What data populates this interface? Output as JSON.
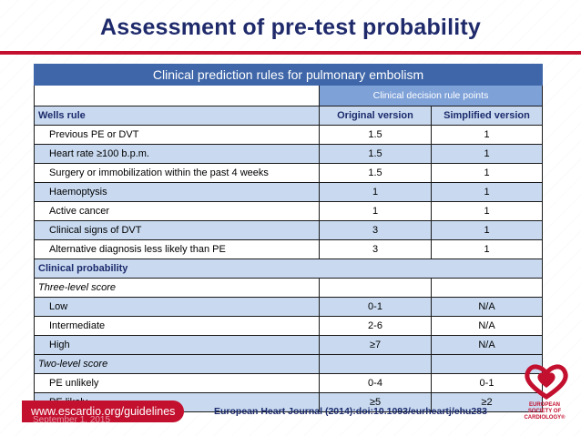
{
  "slide": {
    "title": "Assessment of pre-test probability",
    "table_title": "Clinical prediction rules for pulmonary embolism",
    "header_span": "Clinical decision rule points",
    "col_original": "Original version",
    "col_simplified": "Simplified version",
    "wells_heading": "Wells rule",
    "wells_rows": [
      {
        "label": "Previous PE or DVT",
        "orig": "1.5",
        "simp": "1"
      },
      {
        "label": "Heart rate ≥100 b.p.m.",
        "orig": "1.5",
        "simp": "1"
      },
      {
        "label": "Surgery or immobilization within the past 4 weeks",
        "orig": "1.5",
        "simp": "1"
      },
      {
        "label": "Haemoptysis",
        "orig": "1",
        "simp": "1"
      },
      {
        "label": "Active cancer",
        "orig": "1",
        "simp": "1"
      },
      {
        "label": "Clinical signs of DVT",
        "orig": "3",
        "simp": "1"
      },
      {
        "label": "Alternative diagnosis less likely than PE",
        "orig": "3",
        "simp": "1"
      }
    ],
    "clinical_prob_heading": "Clinical probability",
    "three_level_heading": "Three-level score",
    "three_level_rows": [
      {
        "label": "Low",
        "orig": "0-1",
        "simp": "N/A"
      },
      {
        "label": "Intermediate",
        "orig": "2-6",
        "simp": "N/A"
      },
      {
        "label": "High",
        "orig": "≥7",
        "simp": "N/A"
      }
    ],
    "two_level_heading": "Two-level score",
    "two_level_rows": [
      {
        "label": "PE unlikely",
        "orig": "0-4",
        "simp": "0-1"
      },
      {
        "label": "PE likely",
        "orig": "≥5",
        "simp": "≥2"
      }
    ]
  },
  "footer": {
    "url": "www.escardio.org/guidelines",
    "date": "September 1, 2015",
    "citation": "European Heart Journal (2014):doi:10.1093/eurheartj/ehu283",
    "logo_text": [
      "EUROPEAN",
      "SOCIETY OF",
      "CARDIOLOGY®"
    ]
  },
  "colors": {
    "title": "#1f2a6b",
    "accent_red": "#c3102f",
    "table_header_blue": "#3e66a8",
    "row_blue": "#c9daf0"
  }
}
